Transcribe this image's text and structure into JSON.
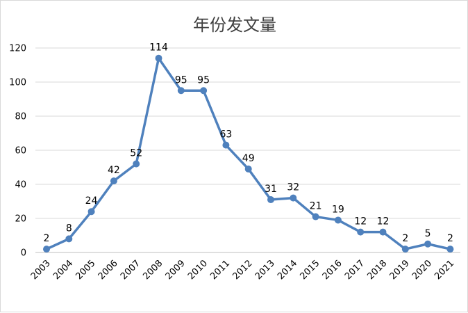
{
  "chart_data": {
    "type": "line",
    "title": "年份发文量",
    "xlabel": "",
    "ylabel": "",
    "categories": [
      "2003",
      "2004",
      "2005",
      "2006",
      "2007",
      "2008",
      "2009",
      "2010",
      "2011",
      "2012",
      "2013",
      "2014",
      "2015",
      "2016",
      "2017",
      "2018",
      "2019",
      "2020",
      "2021"
    ],
    "series": [
      {
        "values": [
          2,
          8,
          24,
          42,
          52,
          114,
          95,
          95,
          63,
          49,
          31,
          32,
          21,
          19,
          12,
          12,
          2,
          5,
          2
        ]
      }
    ],
    "ylim": [
      0,
      120
    ],
    "yticks": [
      "0",
      "20",
      "40",
      "60",
      "80",
      "100",
      "120"
    ],
    "grid": true,
    "data_labels": true,
    "colors": {
      "line": "#4f81bd",
      "grid": "#d9d9d9",
      "axis": "#bfbfbf",
      "text": "#000000",
      "title": "#404040"
    }
  }
}
